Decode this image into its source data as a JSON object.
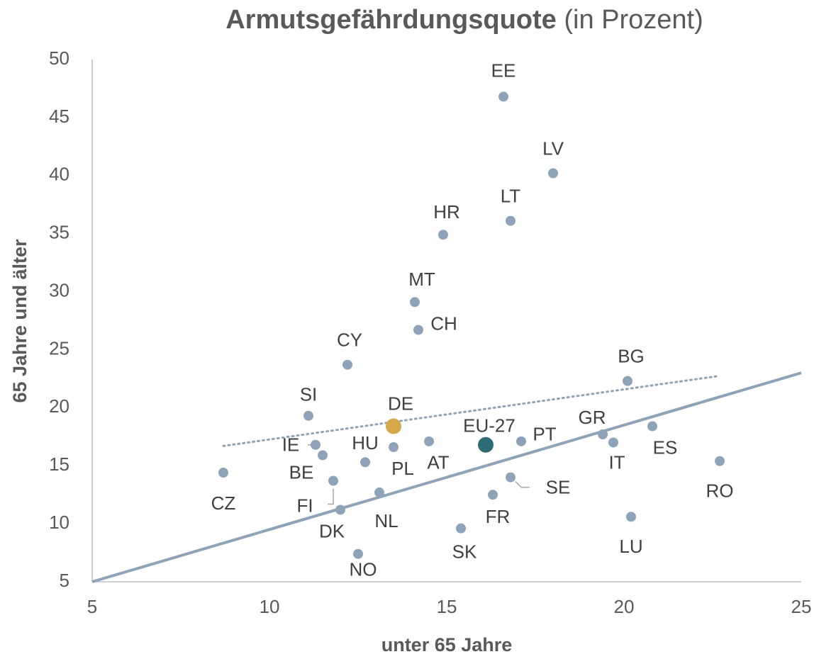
{
  "chart_data": {
    "type": "scatter",
    "title": {
      "bold": "Armutsgefährdungsquote",
      "regular": "(in Prozent)"
    },
    "x_label": "unter 65 Jahre",
    "y_label": "65 Jahre und älter",
    "xlim": [
      5,
      25
    ],
    "xticks": [
      5,
      10,
      15,
      20,
      25
    ],
    "ylim": [
      5,
      50
    ],
    "yticks": [
      5,
      10,
      15,
      20,
      25,
      30,
      35,
      40,
      45,
      50
    ],
    "grid": false,
    "color": "#8fa3b8",
    "points": [
      {
        "label": "EE",
        "x": 16.6,
        "y": 46.8
      },
      {
        "label": "LV",
        "x": 18.0,
        "y": 40.2
      },
      {
        "label": "LT",
        "x": 16.8,
        "y": 36.1
      },
      {
        "label": "HR",
        "x": 14.9,
        "y": 34.9
      },
      {
        "label": "MT",
        "x": 14.1,
        "y": 29.1
      },
      {
        "label": "CH",
        "x": 14.2,
        "y": 26.7
      },
      {
        "label": "CY",
        "x": 12.2,
        "y": 23.7
      },
      {
        "label": "BG",
        "x": 20.1,
        "y": 22.3
      },
      {
        "label": "SI",
        "x": 11.1,
        "y": 19.3
      },
      {
        "label": "DE",
        "x": 13.5,
        "y": 18.4,
        "color": "#d4a84b"
      },
      {
        "label": "ES",
        "x": 20.8,
        "y": 18.4
      },
      {
        "label": "GR",
        "x": 19.4,
        "y": 17.7
      },
      {
        "label": "IT",
        "x": 19.7,
        "y": 17.0
      },
      {
        "label": "PT",
        "x": 17.1,
        "y": 17.1
      },
      {
        "label": "AT",
        "x": 14.5,
        "y": 17.1
      },
      {
        "label": "EU-27",
        "x": 16.1,
        "y": 16.8,
        "color": "#2e6b74"
      },
      {
        "label": "IE",
        "x": 11.3,
        "y": 16.8
      },
      {
        "label": "PL",
        "x": 13.5,
        "y": 16.6
      },
      {
        "label": "BE",
        "x": 11.5,
        "y": 15.9
      },
      {
        "label": "RO",
        "x": 22.7,
        "y": 15.4
      },
      {
        "label": "HU",
        "x": 12.7,
        "y": 15.3
      },
      {
        "label": "CZ",
        "x": 8.7,
        "y": 14.4
      },
      {
        "label": "SE",
        "x": 16.8,
        "y": 14.0
      },
      {
        "label": "FI",
        "x": 11.8,
        "y": 13.7
      },
      {
        "label": "NL",
        "x": 13.1,
        "y": 12.7
      },
      {
        "label": "FR",
        "x": 16.3,
        "y": 12.5
      },
      {
        "label": "DK",
        "x": 12.0,
        "y": 11.2
      },
      {
        "label": "LU",
        "x": 20.2,
        "y": 10.6
      },
      {
        "label": "SK",
        "x": 15.4,
        "y": 9.6
      },
      {
        "label": "NO",
        "x": 12.5,
        "y": 7.4
      }
    ],
    "lines": [
      {
        "style": "solid",
        "x": [
          5,
          25
        ],
        "y": [
          5,
          23
        ]
      },
      {
        "style": "dotted",
        "x": [
          8.7,
          22.6
        ],
        "y": [
          16.7,
          22.7
        ]
      }
    ]
  }
}
